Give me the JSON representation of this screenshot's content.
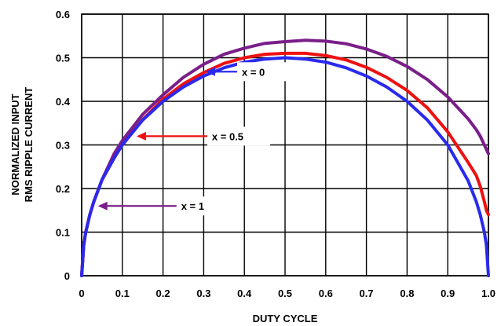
{
  "chart_data": {
    "type": "line",
    "title": "",
    "xlabel": "DUTY CYCLE",
    "ylabel_lines": [
      "NORMALIZED INPUT",
      "RMS RIPPLE CURRENT"
    ],
    "xlim": [
      0,
      1.0
    ],
    "ylim": [
      0,
      0.6
    ],
    "grid": true,
    "xticks": [
      0,
      0.1,
      0.2,
      0.3,
      0.4,
      0.5,
      0.6,
      0.7,
      0.8,
      0.9,
      1.0
    ],
    "xtick_labels": [
      "0",
      "0.1",
      "0.2",
      "0.3",
      "0.4",
      "0.5",
      "0.6",
      "0.7",
      "0.8",
      "0.9",
      "1.0"
    ],
    "yticks": [
      0,
      0.1,
      0.2,
      0.3,
      0.4,
      0.5,
      0.6
    ],
    "ytick_labels": [
      "0",
      "0.1",
      "0.2",
      "0.3",
      "0.4",
      "0.5",
      "0.6"
    ],
    "x": [
      0,
      0.005,
      0.01,
      0.02,
      0.03,
      0.05,
      0.08,
      0.1,
      0.15,
      0.2,
      0.25,
      0.3,
      0.35,
      0.4,
      0.45,
      0.5,
      0.55,
      0.6,
      0.65,
      0.7,
      0.75,
      0.8,
      0.85,
      0.9,
      0.95,
      0.97,
      0.98,
      0.99,
      0.995,
      1.0
    ],
    "series": [
      {
        "color": "#2a2aee",
        "values": [
          0,
          0.07,
          0.1,
          0.14,
          0.17,
          0.22,
          0.27,
          0.3,
          0.357,
          0.4,
          0.433,
          0.458,
          0.477,
          0.49,
          0.497,
          0.5,
          0.497,
          0.49,
          0.477,
          0.458,
          0.433,
          0.4,
          0.357,
          0.3,
          0.218,
          0.17,
          0.14,
          0.1,
          0.07,
          0
        ]
      },
      {
        "color": "#ee1111",
        "values": [
          0,
          0.07,
          0.1,
          0.14,
          0.17,
          0.22,
          0.27,
          0.3,
          0.358,
          0.405,
          0.44,
          0.466,
          0.487,
          0.5,
          0.508,
          0.51,
          0.51,
          0.505,
          0.495,
          0.478,
          0.455,
          0.425,
          0.385,
          0.33,
          0.26,
          0.23,
          0.205,
          0.17,
          0.15,
          0.14
        ]
      },
      {
        "color": "#7a1e8a",
        "values": [
          0,
          0.07,
          0.1,
          0.14,
          0.17,
          0.22,
          0.28,
          0.31,
          0.37,
          0.415,
          0.455,
          0.485,
          0.508,
          0.522,
          0.533,
          0.537,
          0.54,
          0.538,
          0.532,
          0.52,
          0.503,
          0.48,
          0.45,
          0.41,
          0.36,
          0.335,
          0.32,
          0.3,
          0.29,
          0.28
        ]
      }
    ],
    "annotations": [
      {
        "text": "x = 0",
        "arrow_tip": [
          0.305,
          0.468
        ],
        "color": "#2a2aee"
      },
      {
        "text": "x = 0.5",
        "arrow_tip": [
          0.135,
          0.32
        ],
        "color": "#ee1111"
      },
      {
        "text": "x = 1",
        "arrow_tip": [
          0.04,
          0.16
        ],
        "color": "#7a1e8a"
      }
    ]
  }
}
